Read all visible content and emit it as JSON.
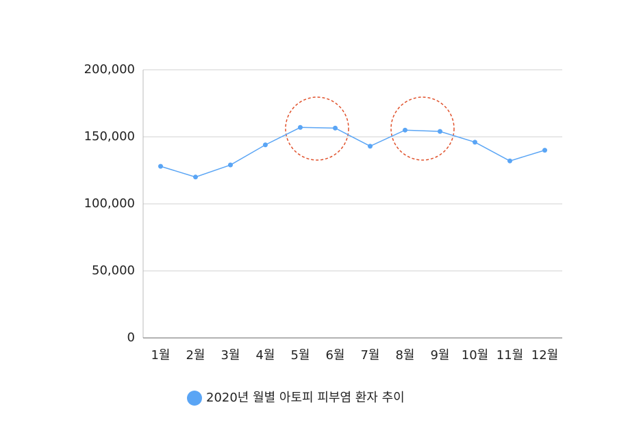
{
  "chart_data": {
    "type": "line",
    "categories": [
      "1월",
      "2월",
      "3월",
      "4월",
      "5월",
      "6월",
      "7월",
      "8월",
      "9월",
      "10월",
      "11월",
      "12월"
    ],
    "series": [
      {
        "name": "2020년 월별 아토피 피부염 환자 추이",
        "color": "#5aa5f5",
        "values": [
          128000,
          120000,
          129000,
          144000,
          157000,
          156500,
          143000,
          155000,
          154000,
          146000,
          132000,
          140000
        ]
      }
    ],
    "ylim": [
      0,
      200000
    ],
    "yticks": [
      0,
      {
        "value": 50000,
        "label": "50,000"
      },
      {
        "value": 100000,
        "label": "100,000"
      },
      {
        "value": 150000,
        "label": "150,000"
      },
      {
        "value": 200000,
        "label": "200,000"
      }
    ],
    "grid": true,
    "legend": "bottom"
  }
}
